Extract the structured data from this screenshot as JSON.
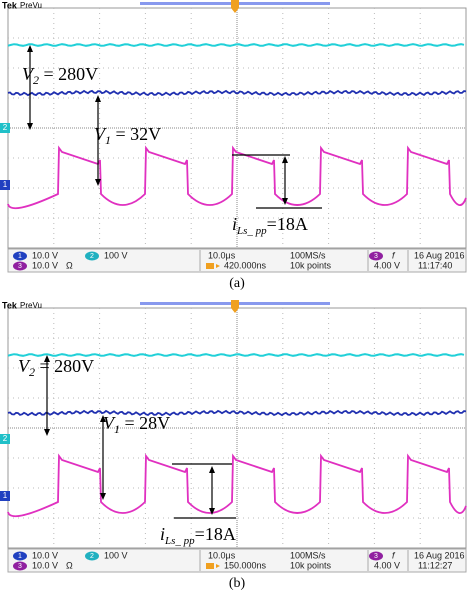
{
  "panels": [
    {
      "caption": "(a)",
      "brand": "Tek",
      "mode": "PreVu",
      "labels": {
        "v2": [
          "V",
          "2",
          " = 280V"
        ],
        "v1": [
          "V",
          "1",
          " = 32V"
        ],
        "i": [
          "i",
          "Ls_ pp",
          "=18A"
        ]
      },
      "markers": [
        "2",
        "1"
      ],
      "status": {
        "ch1": [
          "1",
          "10.0 V"
        ],
        "ch2": [
          "2",
          "100 V"
        ],
        "ch3": [
          "3",
          "10.0 V",
          "Ω"
        ],
        "timebase": "10.0μs",
        "delay": "420.000ns",
        "rate": "100MS/s",
        "points": "10k points",
        "trig": [
          "3",
          "f",
          "4.00 V"
        ],
        "date": "16 Aug 2016",
        "time": "11:17:40"
      }
    },
    {
      "caption": "(b)",
      "brand": "Tek",
      "mode": "PreVu",
      "labels": {
        "v2": [
          "V",
          "2",
          " = 280V"
        ],
        "v1": [
          "V",
          "1",
          " = 28V"
        ],
        "i": [
          "i",
          "Ls_ pp",
          "=18A"
        ]
      },
      "markers": [
        "2",
        "1"
      ],
      "status": {
        "ch1": [
          "1",
          "10.0 V"
        ],
        "ch2": [
          "2",
          "100 V"
        ],
        "ch3": [
          "3",
          "10.0 V",
          "Ω"
        ],
        "timebase": "10.0μs",
        "delay": "150.000ns",
        "rate": "100MS/s",
        "points": "10k points",
        "trig": [
          "3",
          "f",
          "4.00 V"
        ],
        "date": "16 Aug 2016",
        "time": "11:12:27"
      }
    }
  ]
}
